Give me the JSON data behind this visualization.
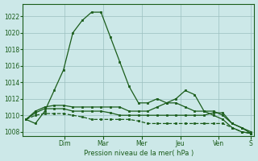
{
  "title": "",
  "xlabel": "Pression niveau de la mer( hPa )",
  "ylabel": "",
  "bg_color": "#cce8e8",
  "grid_color": "#9bbfbf",
  "line_color": "#1a5c1a",
  "ylim": [
    1007.5,
    1023.5
  ],
  "yticks": [
    1008,
    1010,
    1012,
    1014,
    1016,
    1018,
    1020,
    1022
  ],
  "day_labels": [
    "Dim",
    "Mar",
    "Mer",
    "Jeu",
    "Ven",
    "S"
  ],
  "day_tick_positions": [
    6,
    12,
    18,
    24,
    30,
    35
  ],
  "xlim": [
    -0.5,
    35.5
  ],
  "series1": [
    1009.5,
    1009.0,
    1010.5,
    1013.0,
    1015.5,
    1020.0,
    1021.5,
    1022.5,
    1022.5,
    1019.5,
    1016.5,
    1013.5,
    1011.5,
    1011.5,
    1012.0,
    1011.5,
    1012.0,
    1013.0,
    1012.5,
    1010.5,
    1010.0,
    1009.5,
    1008.5,
    1008.0,
    1007.8
  ],
  "series2": [
    1009.5,
    1010.5,
    1011.0,
    1011.2,
    1011.2,
    1011.0,
    1011.0,
    1011.0,
    1011.0,
    1011.0,
    1011.0,
    1010.5,
    1010.5,
    1010.5,
    1011.0,
    1011.5,
    1011.5,
    1011.0,
    1010.5,
    1010.5,
    1010.5,
    1010.0,
    1009.0,
    1008.5,
    1007.8
  ],
  "series3": [
    1009.5,
    1010.3,
    1010.8,
    1010.8,
    1010.8,
    1010.5,
    1010.5,
    1010.5,
    1010.5,
    1010.3,
    1010.0,
    1010.0,
    1010.0,
    1010.0,
    1010.0,
    1010.0,
    1010.0,
    1010.0,
    1010.0,
    1010.0,
    1010.3,
    1010.3,
    1009.0,
    1008.5,
    1008.0
  ],
  "series4": [
    1009.5,
    1010.0,
    1010.2,
    1010.2,
    1010.2,
    1010.0,
    1009.8,
    1009.5,
    1009.5,
    1009.5,
    1009.5,
    1009.5,
    1009.3,
    1009.0,
    1009.0,
    1009.0,
    1009.0,
    1009.0,
    1009.0,
    1009.0,
    1009.0,
    1009.0,
    1008.5,
    1008.0,
    1007.8
  ],
  "n_points": 25
}
